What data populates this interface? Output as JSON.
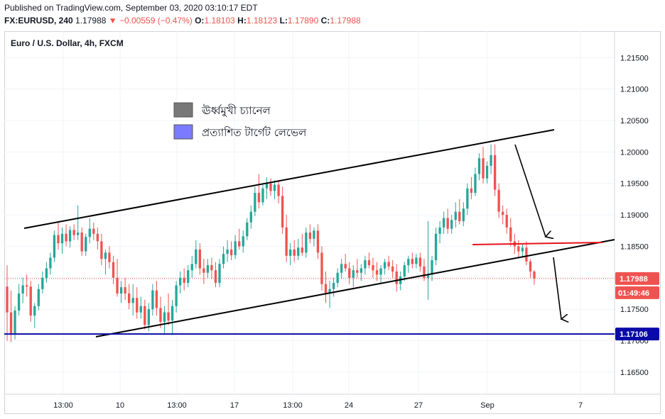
{
  "header": {
    "published": "Published on TradingView.com, September 03, 2020 03:10:17 EDT",
    "symbol": "FX:EURUSD, 240",
    "last": "1.17988",
    "change": "▼ −0.00559 (−0.47%)",
    "o_label": "O:",
    "o": "1.18103",
    "h_label": "H:",
    "h": "1.18123",
    "l_label": "L:",
    "l": "1.17890",
    "c_label": "C:",
    "c": "1.17988"
  },
  "chart_data": {
    "type": "candlestick",
    "title": "Euro / U.S. Dollar, 4h, FXCM",
    "y_ticks": [
      "1.21500",
      "1.21000",
      "1.20500",
      "1.20000",
      "1.19500",
      "1.19000",
      "1.18500",
      "1.18000",
      "1.17500",
      "1.17000",
      "1.16500"
    ],
    "y_tick_values": [
      1.215,
      1.21,
      1.205,
      1.2,
      1.195,
      1.19,
      1.185,
      1.18,
      1.175,
      1.17,
      1.165
    ],
    "ylim": [
      1.1615,
      1.2192
    ],
    "x_ticks": [
      "13:00",
      "10",
      "13:00",
      "17",
      "13:00",
      "24",
      "27",
      "Sep",
      "7"
    ],
    "price_tag": "1.17988",
    "countdown_tag": "01:49:46",
    "target_tag": "1.17106",
    "target_level": 1.17106,
    "current_price": 1.17988,
    "legend": [
      {
        "label": "ঊর্ধ্বমুখী চ্যানেল",
        "color": "#787878"
      },
      {
        "label": "প্রত্যাশিত টার্গেট লেভেল",
        "color": "#7b7bff"
      }
    ],
    "colors": {
      "up": "#26a69a",
      "down": "#ef5350",
      "channel": "#000000",
      "target": "#0a0aa8",
      "resistance": "#e8121b"
    },
    "candles": [
      [
        1.1786,
        1.182,
        1.17,
        1.1745
      ],
      [
        1.1745,
        1.178,
        1.1698,
        1.1712
      ],
      [
        1.1712,
        1.1755,
        1.1702,
        1.1748
      ],
      [
        1.1748,
        1.179,
        1.174,
        1.1775
      ],
      [
        1.1775,
        1.18,
        1.176,
        1.1788
      ],
      [
        1.1788,
        1.1805,
        1.177,
        1.1786
      ],
      [
        1.1786,
        1.1795,
        1.173,
        1.174
      ],
      [
        1.174,
        1.176,
        1.172,
        1.1755
      ],
      [
        1.1755,
        1.179,
        1.1748,
        1.1782
      ],
      [
        1.1782,
        1.181,
        1.1775,
        1.18
      ],
      [
        1.18,
        1.1825,
        1.1792,
        1.1815
      ],
      [
        1.1815,
        1.184,
        1.1805,
        1.1832
      ],
      [
        1.1832,
        1.1875,
        1.1825,
        1.1868
      ],
      [
        1.1868,
        1.189,
        1.1845,
        1.1855
      ],
      [
        1.1855,
        1.188,
        1.1838,
        1.187
      ],
      [
        1.187,
        1.1885,
        1.185,
        1.1858
      ],
      [
        1.1858,
        1.1882,
        1.1848,
        1.1876
      ],
      [
        1.1876,
        1.1885,
        1.186,
        1.1868
      ],
      [
        1.1868,
        1.1915,
        1.186,
        1.1872
      ],
      [
        1.1872,
        1.188,
        1.1835,
        1.1842
      ],
      [
        1.1842,
        1.187,
        1.1835,
        1.1865
      ],
      [
        1.1865,
        1.1895,
        1.1855,
        1.1878
      ],
      [
        1.1878,
        1.1888,
        1.186,
        1.187
      ],
      [
        1.187,
        1.188,
        1.1845,
        1.1858
      ],
      [
        1.1858,
        1.187,
        1.182,
        1.183
      ],
      [
        1.183,
        1.1845,
        1.1805,
        1.184
      ],
      [
        1.184,
        1.185,
        1.1815,
        1.1825
      ],
      [
        1.1825,
        1.1835,
        1.179,
        1.18
      ],
      [
        1.18,
        1.183,
        1.177,
        1.1775
      ],
      [
        1.1775,
        1.1795,
        1.176,
        1.1785
      ],
      [
        1.1785,
        1.18,
        1.1765,
        1.1775
      ],
      [
        1.1775,
        1.179,
        1.175,
        1.176
      ],
      [
        1.176,
        1.179,
        1.174,
        1.1768
      ],
      [
        1.1768,
        1.1785,
        1.1735,
        1.1745
      ],
      [
        1.1745,
        1.177,
        1.1735,
        1.1755
      ],
      [
        1.1755,
        1.1765,
        1.1718,
        1.1725
      ],
      [
        1.1725,
        1.176,
        1.1715,
        1.175
      ],
      [
        1.175,
        1.179,
        1.174,
        1.178
      ],
      [
        1.178,
        1.1795,
        1.174,
        1.1752
      ],
      [
        1.1752,
        1.177,
        1.172,
        1.173
      ],
      [
        1.173,
        1.1755,
        1.1712,
        1.1745
      ],
      [
        1.1745,
        1.1775,
        1.1725,
        1.1732
      ],
      [
        1.1732,
        1.1765,
        1.171,
        1.1755
      ],
      [
        1.1755,
        1.1795,
        1.1745,
        1.1788
      ],
      [
        1.1788,
        1.181,
        1.1775,
        1.18
      ],
      [
        1.18,
        1.1815,
        1.178,
        1.1792
      ],
      [
        1.1792,
        1.182,
        1.1785,
        1.1812
      ],
      [
        1.1812,
        1.1835,
        1.18,
        1.1822
      ],
      [
        1.1822,
        1.186,
        1.1815,
        1.1845
      ],
      [
        1.1845,
        1.1855,
        1.1805,
        1.1815
      ],
      [
        1.1815,
        1.183,
        1.179,
        1.1808
      ],
      [
        1.1808,
        1.183,
        1.18,
        1.182
      ],
      [
        1.182,
        1.1832,
        1.1798,
        1.1812
      ],
      [
        1.1812,
        1.1825,
        1.1785,
        1.1792
      ],
      [
        1.1792,
        1.183,
        1.1785,
        1.1822
      ],
      [
        1.1822,
        1.185,
        1.1815,
        1.1838
      ],
      [
        1.1838,
        1.186,
        1.1825,
        1.1845
      ],
      [
        1.1845,
        1.1858,
        1.1828,
        1.1836
      ],
      [
        1.1836,
        1.1868,
        1.183,
        1.1858
      ],
      [
        1.1858,
        1.1878,
        1.1845,
        1.185
      ],
      [
        1.185,
        1.1875,
        1.184,
        1.1866
      ],
      [
        1.1866,
        1.1895,
        1.186,
        1.1888
      ],
      [
        1.1888,
        1.1915,
        1.1878,
        1.1905
      ],
      [
        1.1905,
        1.1945,
        1.1898,
        1.1935
      ],
      [
        1.1935,
        1.1965,
        1.191,
        1.192
      ],
      [
        1.192,
        1.195,
        1.1915,
        1.1942
      ],
      [
        1.1942,
        1.196,
        1.1925,
        1.195
      ],
      [
        1.195,
        1.1958,
        1.193,
        1.1938
      ],
      [
        1.1938,
        1.1955,
        1.1925,
        1.1948
      ],
      [
        1.1948,
        1.1955,
        1.1918,
        1.193
      ],
      [
        1.193,
        1.1945,
        1.187,
        1.188
      ],
      [
        1.188,
        1.19,
        1.1825,
        1.1835
      ],
      [
        1.1835,
        1.1855,
        1.182,
        1.1845
      ],
      [
        1.1845,
        1.186,
        1.1825,
        1.1835
      ],
      [
        1.1835,
        1.1862,
        1.1828,
        1.1848
      ],
      [
        1.1848,
        1.187,
        1.1835,
        1.184
      ],
      [
        1.184,
        1.188,
        1.1832,
        1.1872
      ],
      [
        1.1872,
        1.1885,
        1.1855,
        1.1862
      ],
      [
        1.1862,
        1.188,
        1.185,
        1.1875
      ],
      [
        1.1875,
        1.1885,
        1.183,
        1.184
      ],
      [
        1.184,
        1.185,
        1.178,
        1.179
      ],
      [
        1.179,
        1.181,
        1.176,
        1.1775
      ],
      [
        1.1775,
        1.1795,
        1.1752,
        1.1782
      ],
      [
        1.1782,
        1.18,
        1.177,
        1.1792
      ],
      [
        1.1792,
        1.1815,
        1.1785,
        1.1808
      ],
      [
        1.1808,
        1.183,
        1.1798,
        1.1822
      ],
      [
        1.1822,
        1.1838,
        1.181,
        1.1815
      ],
      [
        1.1815,
        1.1825,
        1.179,
        1.18
      ],
      [
        1.18,
        1.182,
        1.1785,
        1.1812
      ],
      [
        1.1812,
        1.183,
        1.18,
        1.1808
      ],
      [
        1.1808,
        1.1822,
        1.1795,
        1.1815
      ],
      [
        1.1815,
        1.1835,
        1.1805,
        1.1828
      ],
      [
        1.1828,
        1.184,
        1.1815,
        1.182
      ],
      [
        1.182,
        1.1832,
        1.18,
        1.1812
      ],
      [
        1.1812,
        1.1825,
        1.1795,
        1.1805
      ],
      [
        1.1805,
        1.182,
        1.179,
        1.1815
      ],
      [
        1.1815,
        1.183,
        1.1805,
        1.1825
      ],
      [
        1.1825,
        1.1835,
        1.1812,
        1.1818
      ],
      [
        1.1818,
        1.1828,
        1.18,
        1.181
      ],
      [
        1.181,
        1.1822,
        1.1778,
        1.179
      ],
      [
        1.179,
        1.181,
        1.178,
        1.1802
      ],
      [
        1.1802,
        1.1825,
        1.1795,
        1.182
      ],
      [
        1.182,
        1.1835,
        1.1808,
        1.183
      ],
      [
        1.183,
        1.184,
        1.1815,
        1.1822
      ],
      [
        1.1822,
        1.1838,
        1.1815,
        1.1832
      ],
      [
        1.1832,
        1.184,
        1.181,
        1.1818
      ],
      [
        1.1818,
        1.183,
        1.1795,
        1.18
      ],
      [
        1.18,
        1.189,
        1.1765,
        1.1805
      ],
      [
        1.1805,
        1.1835,
        1.1795,
        1.1828
      ],
      [
        1.1828,
        1.188,
        1.182,
        1.187
      ],
      [
        1.187,
        1.189,
        1.1855,
        1.188
      ],
      [
        1.188,
        1.1905,
        1.187,
        1.1895
      ],
      [
        1.1895,
        1.191,
        1.187,
        1.1878
      ],
      [
        1.1878,
        1.19,
        1.187,
        1.1892
      ],
      [
        1.1892,
        1.192,
        1.188,
        1.1905
      ],
      [
        1.1905,
        1.1925,
        1.1885,
        1.189
      ],
      [
        1.189,
        1.192,
        1.1882,
        1.191
      ],
      [
        1.191,
        1.195,
        1.19,
        1.1942
      ],
      [
        1.1942,
        1.196,
        1.1925,
        1.1935
      ],
      [
        1.1935,
        1.1975,
        1.193,
        1.1965
      ],
      [
        1.1965,
        1.1998,
        1.1955,
        1.199
      ],
      [
        1.199,
        1.2008,
        1.195,
        1.1958
      ],
      [
        1.1958,
        1.1985,
        1.195,
        1.1978
      ],
      [
        1.1978,
        1.2012,
        1.1965,
        1.1995
      ],
      [
        1.1995,
        1.2012,
        1.193,
        1.194
      ],
      [
        1.194,
        1.195,
        1.1895,
        1.1905
      ],
      [
        1.1905,
        1.1915,
        1.1885,
        1.19
      ],
      [
        1.19,
        1.191,
        1.187,
        1.188
      ],
      [
        1.188,
        1.1895,
        1.185,
        1.1858
      ],
      [
        1.1858,
        1.187,
        1.1838,
        1.185
      ],
      [
        1.185,
        1.186,
        1.1832,
        1.1842
      ],
      [
        1.1842,
        1.1855,
        1.1832,
        1.1848
      ],
      [
        1.1848,
        1.1858,
        1.182,
        1.1826
      ],
      [
        1.1826,
        1.183,
        1.18,
        1.181
      ],
      [
        1.181,
        1.1812,
        1.1789,
        1.1799
      ]
    ]
  }
}
